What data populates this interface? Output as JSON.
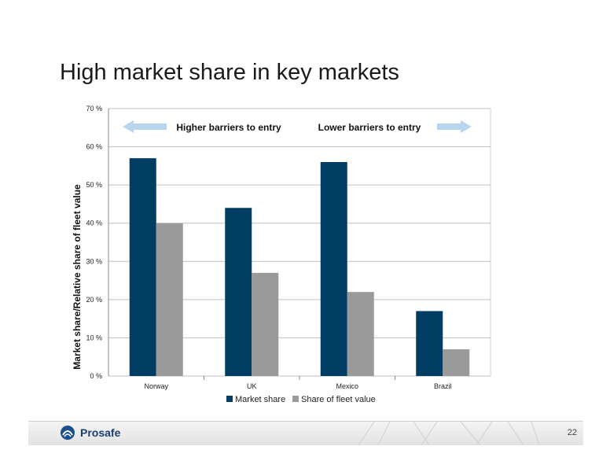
{
  "slide": {
    "title": "High market share in key markets",
    "page_number": "22",
    "logo_text": "Prosafe"
  },
  "annotations": {
    "left_label": "Higher barriers to entry",
    "right_label": "Lower barriers to entry"
  },
  "colors": {
    "market_share": "#003d63",
    "fleet_value": "#9a9a9a",
    "arrow": "#b7d6ee",
    "grid": "#bfbfbf"
  },
  "chart_data": {
    "type": "bar",
    "categories": [
      "Norway",
      "UK",
      "Mexico",
      "Brazil"
    ],
    "series": [
      {
        "name": "Market share",
        "values": [
          57,
          44,
          56,
          17
        ]
      },
      {
        "name": "Share of fleet value",
        "values": [
          40,
          27,
          22,
          7
        ]
      }
    ],
    "ylabel": "Market share/Relative share of fleet value",
    "ylim": [
      0,
      70
    ],
    "yticks": [
      "0 %",
      "10 %",
      "20 %",
      "30 %",
      "40 %",
      "50 %",
      "60 %",
      "70 %"
    ],
    "grid": true,
    "legend": "bottom"
  }
}
